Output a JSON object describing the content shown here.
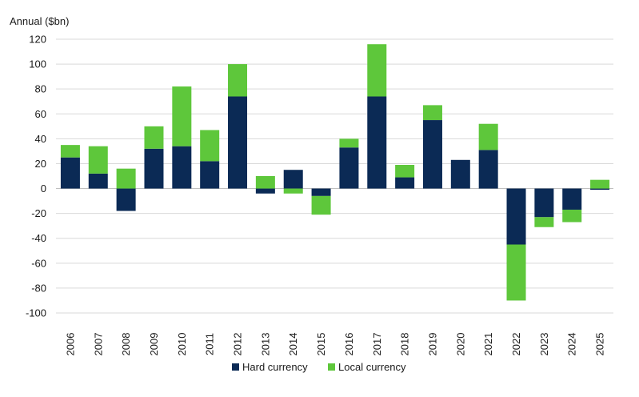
{
  "chart_data": {
    "type": "bar",
    "stacked": true,
    "ylabel": "Annual ($bn)",
    "ylim": [
      -100,
      120
    ],
    "yticks": [
      120,
      100,
      80,
      60,
      40,
      20,
      0,
      -20,
      -40,
      -60,
      -80,
      -100
    ],
    "grid": true,
    "legend_position": "bottom-center",
    "categories": [
      "2006",
      "2007",
      "2008",
      "2009",
      "2010",
      "2011",
      "2012",
      "2013",
      "2014",
      "2015",
      "2016",
      "2017",
      "2018",
      "2019",
      "2020",
      "2021",
      "2022",
      "2023",
      "2024",
      "2025"
    ],
    "series": [
      {
        "name": "Hard currency",
        "color": "#0b2a55",
        "values": [
          25,
          12,
          -18,
          32,
          34,
          22,
          74,
          -4,
          15,
          -6,
          33,
          74,
          9,
          55,
          23,
          31,
          -45,
          -23,
          -17,
          -1
        ]
      },
      {
        "name": "Local currency",
        "color": "#5ec73b",
        "values": [
          10,
          22,
          16,
          18,
          48,
          25,
          26,
          10,
          -4,
          -15,
          7,
          42,
          10,
          12,
          0,
          21,
          -45,
          -8,
          -10,
          7
        ]
      }
    ]
  }
}
